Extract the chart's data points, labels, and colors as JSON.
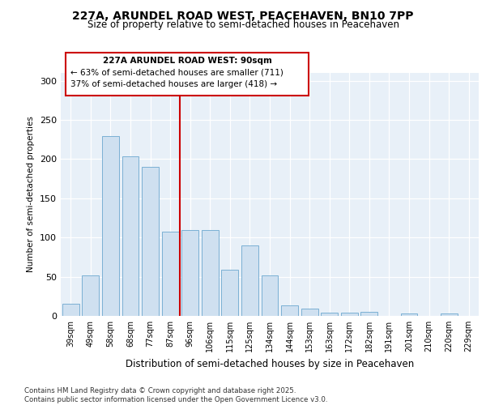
{
  "title_line1": "227A, ARUNDEL ROAD WEST, PEACEHAVEN, BN10 7PP",
  "title_line2": "Size of property relative to semi-detached houses in Peacehaven",
  "xlabel": "Distribution of semi-detached houses by size in Peacehaven",
  "ylabel": "Number of semi-detached properties",
  "categories": [
    "39sqm",
    "49sqm",
    "58sqm",
    "68sqm",
    "77sqm",
    "87sqm",
    "96sqm",
    "106sqm",
    "115sqm",
    "125sqm",
    "134sqm",
    "144sqm",
    "153sqm",
    "163sqm",
    "172sqm",
    "182sqm",
    "191sqm",
    "201sqm",
    "210sqm",
    "220sqm",
    "229sqm"
  ],
  "values": [
    16,
    52,
    229,
    204,
    190,
    107,
    110,
    110,
    59,
    90,
    52,
    13,
    9,
    4,
    4,
    5,
    0,
    3,
    0,
    3,
    0
  ],
  "bar_color": "#cfe0f0",
  "bar_edge_color": "#7ab0d4",
  "vline_x": 5.5,
  "vline_color": "#cc0000",
  "annotation_title": "227A ARUNDEL ROAD WEST: 90sqm",
  "annotation_line1": "← 63% of semi-detached houses are smaller (711)",
  "annotation_line2": "37% of semi-detached houses are larger (418) →",
  "annotation_box_color": "#cc0000",
  "ylim": [
    0,
    310
  ],
  "yticks": [
    0,
    50,
    100,
    150,
    200,
    250,
    300
  ],
  "footnote1": "Contains HM Land Registry data © Crown copyright and database right 2025.",
  "footnote2": "Contains public sector information licensed under the Open Government Licence v3.0.",
  "plot_bg_color": "#e8f0f8"
}
